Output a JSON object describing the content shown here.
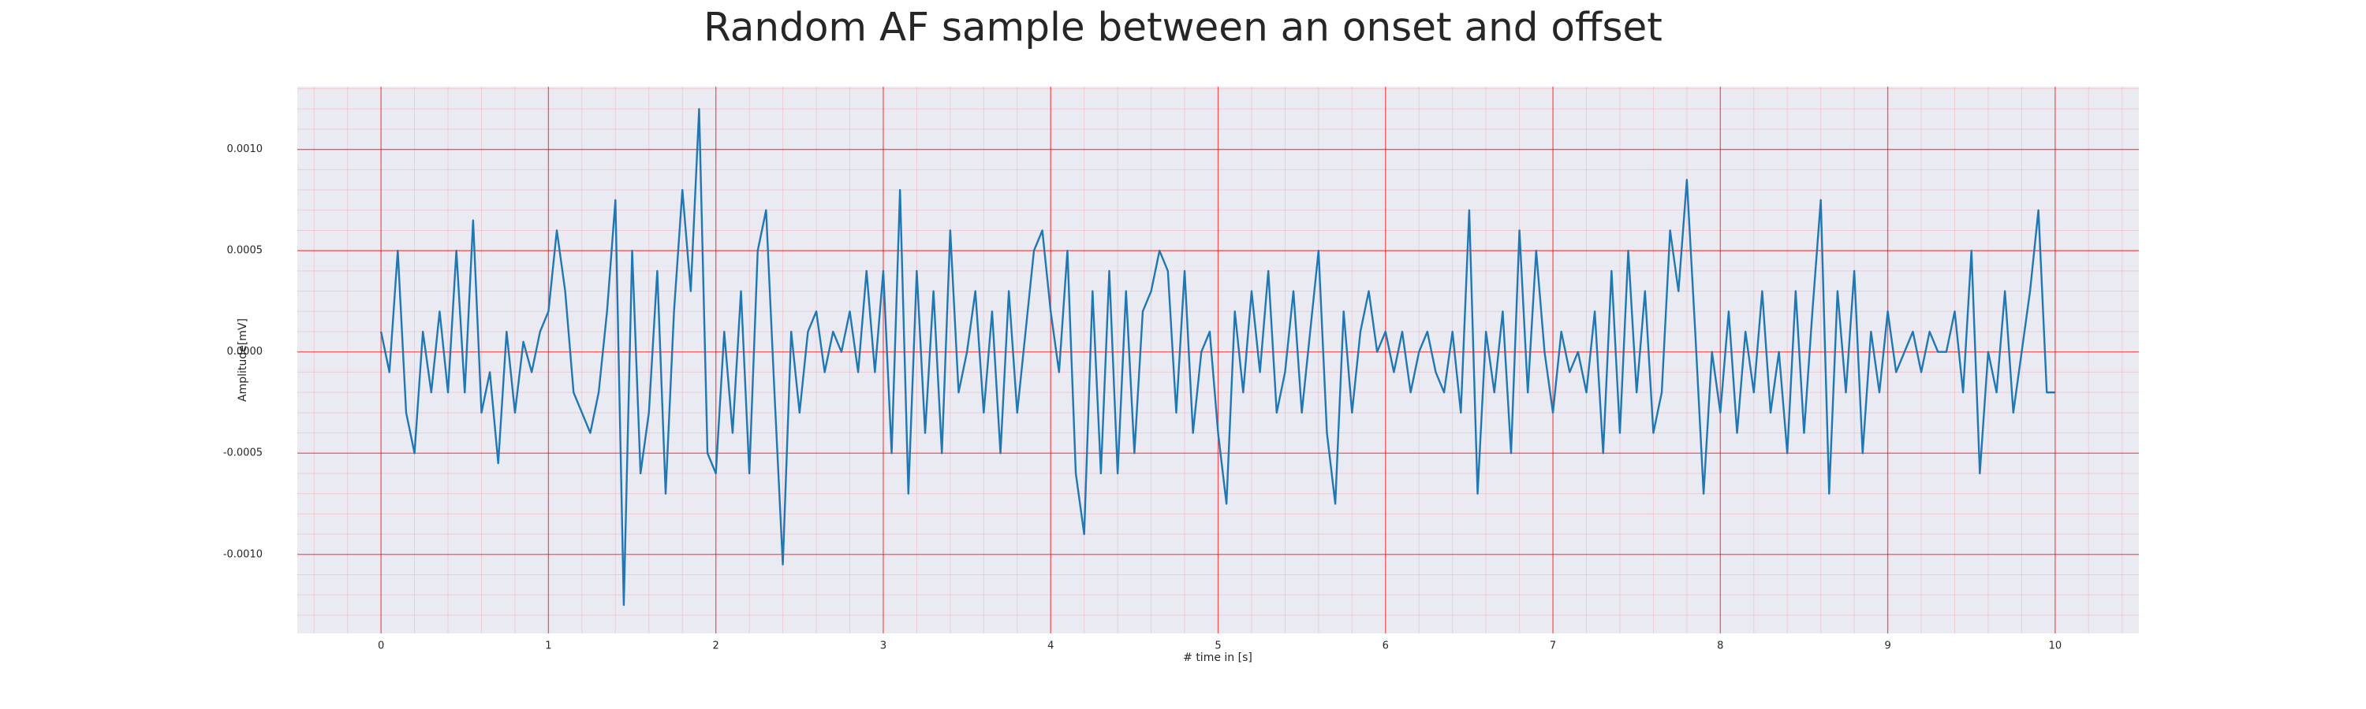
{
  "chart_data": {
    "type": "line",
    "title": "Random AF sample between an onset and offset",
    "x_label": "# time in [s]",
    "y_label": "Amplitude[mV]",
    "xlim": [
      -0.5,
      10.5
    ],
    "ylim": [
      -0.00139,
      0.00131
    ],
    "xticks": [
      0,
      1,
      2,
      3,
      4,
      5,
      6,
      7,
      8,
      9,
      10
    ],
    "yticks": [
      {
        "value": -0.001,
        "label": "-0.0010"
      },
      {
        "value": -0.0005,
        "label": "-0.0005"
      },
      {
        "value": 0,
        "label": "0.0000"
      },
      {
        "value": 0.0005,
        "label": "0.0005"
      },
      {
        "value": 0.001,
        "label": "0.0010"
      }
    ],
    "grid": true,
    "minor_grid": true,
    "grid_color": "#ff0000",
    "background": "#eaeaf2",
    "x": [
      0,
      0.05,
      0.1,
      0.15,
      0.2,
      0.25,
      0.3,
      0.35,
      0.4,
      0.45,
      0.5,
      0.55,
      0.6,
      0.65,
      0.7,
      0.75,
      0.8,
      0.85,
      0.9,
      0.95,
      1,
      1.05,
      1.1,
      1.15,
      1.2,
      1.25,
      1.3,
      1.35,
      1.4,
      1.45,
      1.5,
      1.55,
      1.6,
      1.65,
      1.7,
      1.75,
      1.8,
      1.85,
      1.9,
      1.95,
      2,
      2.05,
      2.1,
      2.15,
      2.2,
      2.25,
      2.3,
      2.35,
      2.4,
      2.45,
      2.5,
      2.55,
      2.6,
      2.65,
      2.7,
      2.75,
      2.8,
      2.85,
      2.9,
      2.95,
      3,
      3.05,
      3.1,
      3.15,
      3.2,
      3.25,
      3.3,
      3.35,
      3.4,
      3.45,
      3.5,
      3.55,
      3.6,
      3.65,
      3.7,
      3.75,
      3.8,
      3.85,
      3.9,
      3.95,
      4,
      4.05,
      4.1,
      4.15,
      4.2,
      4.25,
      4.3,
      4.35,
      4.4,
      4.45,
      4.5,
      4.55,
      4.6,
      4.65,
      4.7,
      4.75,
      4.8,
      4.85,
      4.9,
      4.95,
      5,
      5.05,
      5.1,
      5.15,
      5.2,
      5.25,
      5.3,
      5.35,
      5.4,
      5.45,
      5.5,
      5.55,
      5.6,
      5.65,
      5.7,
      5.75,
      5.8,
      5.85,
      5.9,
      5.95,
      6,
      6.05,
      6.1,
      6.15,
      6.2,
      6.25,
      6.3,
      6.35,
      6.4,
      6.45,
      6.5,
      6.55,
      6.6,
      6.65,
      6.7,
      6.75,
      6.8,
      6.85,
      6.9,
      6.95,
      7,
      7.05,
      7.1,
      7.15,
      7.2,
      7.25,
      7.3,
      7.35,
      7.4,
      7.45,
      7.5,
      7.55,
      7.6,
      7.65,
      7.7,
      7.75,
      7.8,
      7.85,
      7.9,
      7.95,
      8,
      8.05,
      8.1,
      8.15,
      8.2,
      8.25,
      8.3,
      8.35,
      8.4,
      8.45,
      8.5,
      8.55,
      8.6,
      8.65,
      8.7,
      8.75,
      8.8,
      8.85,
      8.9,
      8.95,
      9,
      9.05,
      9.1,
      9.15,
      9.2,
      9.25,
      9.3,
      9.35,
      9.4,
      9.45,
      9.5,
      9.55,
      9.6,
      9.65,
      9.7,
      9.75,
      9.8,
      9.85,
      9.9,
      9.95,
      10
    ],
    "series": [
      {
        "color": "#1f77b4",
        "values": [
          0.0001,
          -0.0001,
          0.0005,
          -0.0003,
          -0.0005,
          0.0001,
          -0.0002,
          0.0002,
          -0.0002,
          0.0005,
          -0.0002,
          0.00065,
          -0.0003,
          -0.0001,
          -0.00055,
          0.0001,
          -0.0003,
          5e-05,
          -0.0001,
          0.0001,
          0.0002,
          0.0006,
          0.0003,
          -0.0002,
          -0.0003,
          -0.0004,
          -0.0002,
          0.0002,
          0.00075,
          -0.00125,
          0.0005,
          -0.0006,
          -0.0003,
          0.0004,
          -0.0007,
          0.0002,
          0.0008,
          0.0003,
          0.0012,
          -0.0005,
          -0.0006,
          0.0001,
          -0.0004,
          0.0003,
          -0.0006,
          0.0005,
          0.0007,
          -0.0002,
          -0.00105,
          0.0001,
          -0.0003,
          0.0001,
          0.0002,
          -0.0001,
          0.0001,
          0,
          0.0002,
          -0.0001,
          0.0004,
          -0.0001,
          0.0004,
          -0.0005,
          0.0008,
          -0.0007,
          0.0004,
          -0.0004,
          0.0003,
          -0.0005,
          0.0006,
          -0.0002,
          0,
          0.0003,
          -0.0003,
          0.0002,
          -0.0005,
          0.0003,
          -0.0003,
          0.0001,
          0.0005,
          0.0006,
          0.0002,
          -0.0001,
          0.0005,
          -0.0006,
          -0.0009,
          0.0003,
          -0.0006,
          0.0004,
          -0.0006,
          0.0003,
          -0.0005,
          0.0002,
          0.0003,
          0.0005,
          0.0004,
          -0.0003,
          0.0004,
          -0.0004,
          0,
          0.0001,
          -0.0004,
          -0.00075,
          0.0002,
          -0.0002,
          0.0003,
          -0.0001,
          0.0004,
          -0.0003,
          -0.0001,
          0.0003,
          -0.0003,
          0.0001,
          0.0005,
          -0.0004,
          -0.00075,
          0.0002,
          -0.0003,
          0.0001,
          0.0003,
          0,
          0.0001,
          -0.0001,
          0.0001,
          -0.0002,
          0,
          0.0001,
          -0.0001,
          -0.0002,
          0.0001,
          -0.0003,
          0.0007,
          -0.0007,
          0.0001,
          -0.0002,
          0.0002,
          -0.0005,
          0.0006,
          -0.0002,
          0.0005,
          0,
          -0.0003,
          0.0001,
          -0.0001,
          0,
          -0.0002,
          0.0002,
          -0.0005,
          0.0004,
          -0.0004,
          0.0005,
          -0.0002,
          0.0003,
          -0.0004,
          -0.0002,
          0.0006,
          0.0003,
          0.00085,
          0.0001,
          -0.0007,
          0,
          -0.0003,
          0.0002,
          -0.0004,
          0.0001,
          -0.0002,
          0.0003,
          -0.0003,
          0,
          -0.0005,
          0.0003,
          -0.0004,
          0.0002,
          0.00075,
          -0.0007,
          0.0003,
          -0.0002,
          0.0004,
          -0.0005,
          0.0001,
          -0.0002,
          0.0002,
          -0.0001,
          0,
          0.0001,
          -0.0001,
          0.0001,
          0,
          0,
          0.0002,
          -0.0002,
          0.0005,
          -0.0006,
          0,
          -0.0002,
          0.0003,
          -0.0003,
          0,
          0.0003,
          0.0007,
          -0.0002,
          -0.0002
        ]
      }
    ]
  }
}
